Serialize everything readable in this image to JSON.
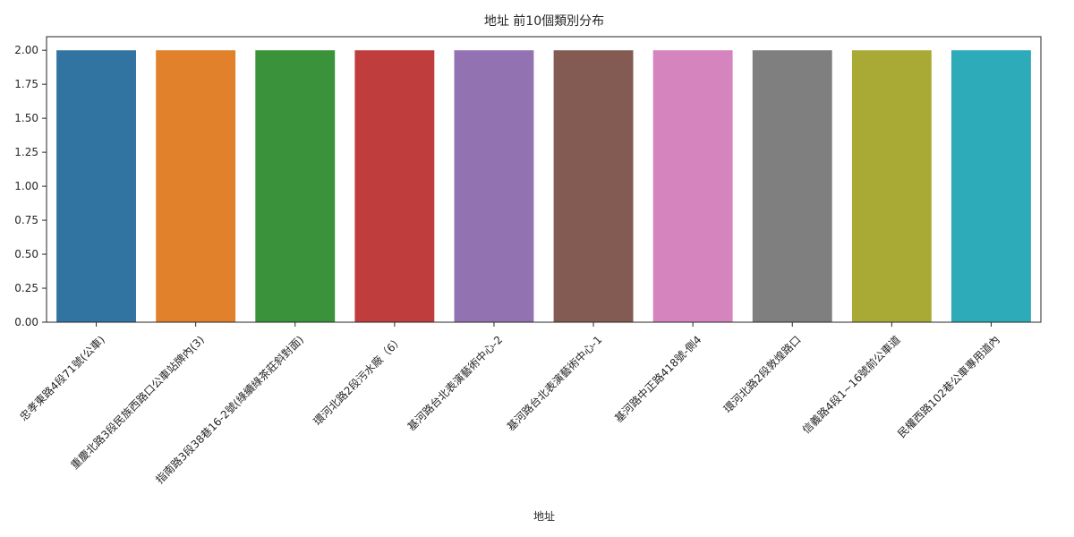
{
  "chart_data": {
    "type": "bar",
    "title": "地址 前10個類別分布",
    "xlabel": "地址",
    "ylabel": "",
    "ylim": [
      0,
      2.1
    ],
    "yticks": [
      "0.00",
      "0.25",
      "0.50",
      "0.75",
      "1.00",
      "1.25",
      "1.50",
      "1.75",
      "2.00"
    ],
    "categories": [
      "忠孝東路4段71號(公車)",
      "重慶北路3段民族西路口公車站牌內(3)",
      "指南路3段38巷16-2號(綠續綠茶莊斜對面)",
      "環河北路2段污水廠（6）",
      "基河路台北表演藝術中心-2",
      "基河路台北表演藝術中心-1",
      "基河路中正路418號-側4",
      "環河北路2段敦煌路口",
      "信義路4段1~16號前公車道",
      "民權西路102巷公車專用道內"
    ],
    "values": [
      2,
      2,
      2,
      2,
      2,
      2,
      2,
      2,
      2,
      2
    ],
    "colors": [
      "#3274a1",
      "#e1812c",
      "#3a923a",
      "#c03d3e",
      "#9372b2",
      "#845b53",
      "#d684bd",
      "#7f7f7f",
      "#a9aa35",
      "#2eabb8"
    ],
    "grid": false,
    "legend": "none"
  }
}
